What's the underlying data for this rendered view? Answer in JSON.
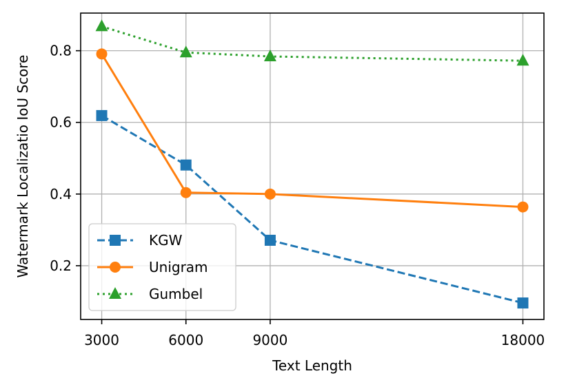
{
  "chart_data": {
    "type": "line",
    "title": "",
    "xlabel": "Text Length",
    "ylabel": "Watermark Localizatio IoU Score",
    "x": [
      3000,
      6000,
      9000,
      18000
    ],
    "x_tick_labels": [
      "3000",
      "6000",
      "9000",
      "18000"
    ],
    "xlim": [
      2250,
      18750
    ],
    "ylim": [
      0.05,
      0.905
    ],
    "y_ticks": [
      0.2,
      0.4,
      0.6,
      0.8
    ],
    "y_tick_labels": [
      "0.2",
      "0.4",
      "0.6",
      "0.8"
    ],
    "grid": true,
    "legend_position": "lower-left",
    "series": [
      {
        "name": "KGW",
        "values": [
          0.619,
          0.481,
          0.271,
          0.096
        ],
        "color": "#1f77b4",
        "line_style": "dashed",
        "marker": "square"
      },
      {
        "name": "Unigram",
        "values": [
          0.791,
          0.404,
          0.4,
          0.364
        ],
        "color": "#ff7f0e",
        "line_style": "solid",
        "marker": "circle"
      },
      {
        "name": "Gumbel",
        "values": [
          0.868,
          0.795,
          0.784,
          0.772
        ],
        "color": "#2ca02c",
        "line_style": "dotted",
        "marker": "triangle"
      }
    ]
  }
}
